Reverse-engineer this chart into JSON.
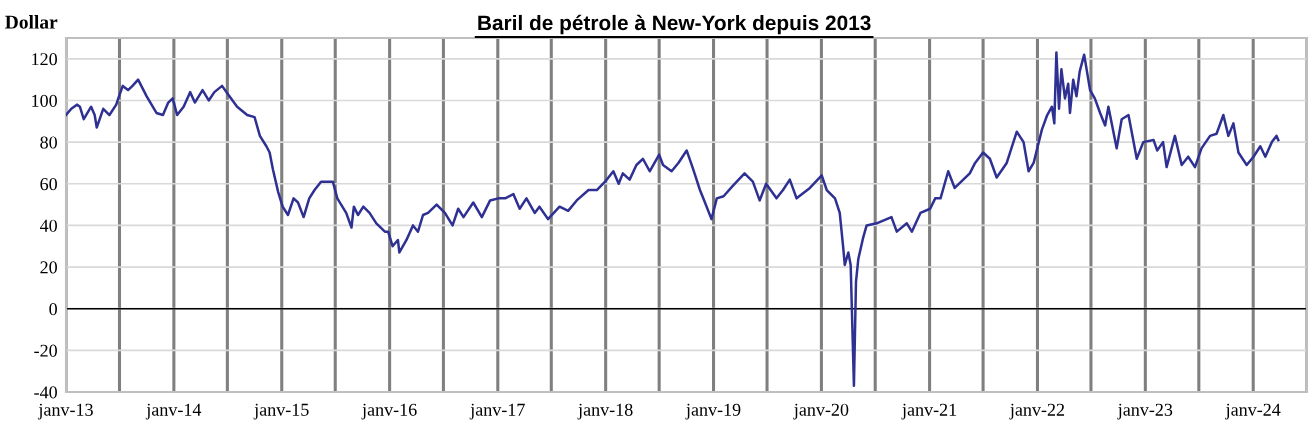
{
  "chart_data": {
    "type": "line",
    "title": "Baril de pétrole à New-York depuis 2013",
    "ylabel": "Dollar",
    "x": [
      "2013-01-01",
      "2013-01-19",
      "2013-02-07",
      "2013-02-17",
      "2013-03-02",
      "2013-03-27",
      "2013-04-08",
      "2013-04-15",
      "2013-05-07",
      "2013-05-28",
      "2013-06-20",
      "2013-06-27",
      "2013-07-12",
      "2013-07-30",
      "2013-08-14",
      "2013-09-02",
      "2013-10-01",
      "2013-11-03",
      "2013-11-25",
      "2013-12-13",
      "2013-12-28",
      "2014-01-12",
      "2014-02-03",
      "2014-02-25",
      "2014-03-13",
      "2014-04-08",
      "2014-04-29",
      "2014-05-18",
      "2014-06-13",
      "2014-07-08",
      "2014-08-03",
      "2014-09-06",
      "2014-10-01",
      "2014-10-19",
      "2014-11-10",
      "2014-11-21",
      "2014-12-02",
      "2014-12-20",
      "2015-01-04",
      "2015-01-22",
      "2015-02-10",
      "2015-02-25",
      "2015-03-16",
      "2015-04-04",
      "2015-04-22",
      "2015-05-14",
      "2015-06-05",
      "2015-06-23",
      "2015-07-08",
      "2015-08-07",
      "2015-08-25",
      "2015-09-02",
      "2015-09-16",
      "2015-10-04",
      "2015-10-25",
      "2015-11-17",
      "2015-12-16",
      "2015-12-27",
      "2016-01-11",
      "2016-01-29",
      "2016-02-03",
      "2016-02-27",
      "2016-03-20",
      "2016-04-06",
      "2016-04-23",
      "2016-05-10",
      "2016-06-08",
      "2016-07-06",
      "2016-08-01",
      "2016-08-20",
      "2016-09-07",
      "2016-10-10",
      "2016-11-08",
      "2016-12-06",
      "2017-01-03",
      "2017-01-26",
      "2017-02-23",
      "2017-03-16",
      "2017-04-08",
      "2017-05-06",
      "2017-05-22",
      "2017-06-20",
      "2017-07-29",
      "2017-08-27",
      "2017-09-25",
      "2017-11-04",
      "2017-12-02",
      "2017-12-30",
      "2018-01-27",
      "2018-02-14",
      "2018-02-28",
      "2018-03-23",
      "2018-04-15",
      "2018-05-07",
      "2018-05-30",
      "2018-07-01",
      "2018-07-14",
      "2018-08-12",
      "2018-09-04",
      "2018-10-02",
      "2018-10-24",
      "2018-11-16",
      "2018-12-03",
      "2018-12-25",
      "2019-01-12",
      "2019-02-04",
      "2019-03-07",
      "2019-04-16",
      "2019-05-14",
      "2019-06-06",
      "2019-06-28",
      "2019-08-02",
      "2019-08-24",
      "2019-09-16",
      "2019-10-09",
      "2019-11-23",
      "2020-01-02",
      "2020-01-19",
      "2020-02-16",
      "2020-03-03",
      "2020-03-15",
      "2020-03-20",
      "2020-04-01",
      "2020-04-09",
      "2020-04-20",
      "2020-04-27",
      "2020-05-05",
      "2020-05-21",
      "2020-06-02",
      "2020-07-06",
      "2020-08-25",
      "2020-09-12",
      "2020-10-16",
      "2020-11-02",
      "2020-12-01",
      "2021-01-03",
      "2021-01-20",
      "2021-02-07",
      "2021-03-05",
      "2021-03-27",
      "2021-04-25",
      "2021-05-17",
      "2021-06-04",
      "2021-07-01",
      "2021-07-24",
      "2021-08-16",
      "2021-09-19",
      "2021-10-23",
      "2021-11-15",
      "2021-12-02",
      "2021-12-19",
      "2022-01-16",
      "2022-02-03",
      "2022-02-19",
      "2022-02-27",
      "2022-03-06",
      "2022-03-15",
      "2022-03-23",
      "2022-04-04",
      "2022-04-15",
      "2022-04-21",
      "2022-05-02",
      "2022-05-13",
      "2022-05-24",
      "2022-06-08",
      "2022-06-28",
      "2022-07-14",
      "2022-08-01",
      "2022-08-18",
      "2022-08-29",
      "2022-09-26",
      "2022-10-13",
      "2022-11-05",
      "2022-12-03",
      "2022-12-25",
      "2023-01-29",
      "2023-02-10",
      "2023-03-02",
      "2023-03-14",
      "2023-04-11",
      "2023-05-04",
      "2023-05-26",
      "2023-06-18",
      "2023-07-10",
      "2023-08-08",
      "2023-08-30",
      "2023-09-22",
      "2023-10-09",
      "2023-10-26",
      "2023-11-12",
      "2023-12-10",
      "2024-01-02",
      "2024-01-25",
      "2024-02-11",
      "2024-03-04",
      "2024-03-20",
      "2024-03-26"
    ],
    "series": [
      {
        "color": "#2e3192",
        "values": [
          93,
          96,
          98,
          97,
          91,
          97,
          93,
          87,
          96,
          93,
          98,
          101,
          107,
          105,
          107,
          110,
          102,
          94,
          93,
          99,
          101,
          93,
          97,
          104,
          99,
          105,
          100,
          104,
          107,
          102,
          97,
          93,
          92,
          83,
          78,
          75,
          67,
          56,
          49,
          45,
          53,
          51,
          44,
          53,
          57,
          61,
          61,
          61,
          53,
          46,
          39,
          49,
          45,
          49,
          46,
          41,
          37,
          37,
          30,
          33,
          27,
          33,
          40,
          37,
          45,
          46,
          50,
          46,
          40,
          48,
          44,
          51,
          44,
          52,
          53,
          53,
          55,
          48,
          53,
          46,
          49,
          43,
          49,
          47,
          52,
          57,
          57,
          61,
          66,
          60,
          65,
          62,
          69,
          72,
          66,
          74,
          69,
          66,
          70,
          76,
          67,
          57,
          51,
          43,
          53,
          54,
          59,
          65,
          61,
          52,
          60,
          53,
          57,
          62,
          53,
          58,
          64,
          57,
          53,
          46,
          29,
          21,
          27,
          21,
          -37,
          13,
          24,
          34,
          40,
          41,
          44,
          37,
          41,
          37,
          46,
          48,
          53,
          53,
          66,
          58,
          62,
          65,
          70,
          75,
          72,
          63,
          70,
          85,
          80,
          66,
          70,
          86,
          93,
          97,
          89,
          123,
          96,
          115,
          101,
          108,
          94,
          110,
          102,
          114,
          122,
          105,
          101,
          94,
          88,
          97,
          77,
          91,
          93,
          72,
          80,
          81,
          76,
          80,
          68,
          83,
          69,
          73,
          68,
          77,
          83,
          84,
          93,
          83,
          89,
          75,
          69,
          73,
          78,
          73,
          80,
          83,
          81
        ]
      }
    ],
    "xlim": [
      "2013-01-01",
      "2024-07-01"
    ],
    "xticks": [
      {
        "value": "2013-01-01",
        "label": "janv-13"
      },
      {
        "value": "2013-07-01",
        "label": null
      },
      {
        "value": "2014-01-01",
        "label": "janv-14"
      },
      {
        "value": "2014-07-01",
        "label": null
      },
      {
        "value": "2015-01-01",
        "label": "janv-15"
      },
      {
        "value": "2015-07-01",
        "label": null
      },
      {
        "value": "2016-01-01",
        "label": "janv-16"
      },
      {
        "value": "2016-07-01",
        "label": null
      },
      {
        "value": "2017-01-01",
        "label": "janv-17"
      },
      {
        "value": "2017-07-01",
        "label": null
      },
      {
        "value": "2018-01-01",
        "label": "janv-18"
      },
      {
        "value": "2018-07-01",
        "label": null
      },
      {
        "value": "2019-01-01",
        "label": "janv-19"
      },
      {
        "value": "2019-07-01",
        "label": null
      },
      {
        "value": "2020-01-01",
        "label": "janv-20"
      },
      {
        "value": "2020-07-01",
        "label": null
      },
      {
        "value": "2021-01-01",
        "label": "janv-21"
      },
      {
        "value": "2021-07-01",
        "label": null
      },
      {
        "value": "2022-01-01",
        "label": "janv-22"
      },
      {
        "value": "2022-07-01",
        "label": null
      },
      {
        "value": "2023-01-01",
        "label": "janv-23"
      },
      {
        "value": "2023-07-01",
        "label": null
      },
      {
        "value": "2024-01-01",
        "label": "janv-24"
      },
      {
        "value": "2024-07-01",
        "label": null
      }
    ],
    "ylim": [
      -40,
      130
    ],
    "yticks": [
      -40,
      -20,
      0,
      20,
      40,
      60,
      80,
      100,
      120
    ],
    "ref_lines": [
      {
        "axis": "y",
        "value": 0,
        "color": "#000000"
      }
    ],
    "grid": true,
    "legend": false,
    "marker": "none",
    "line_style": "solid"
  }
}
